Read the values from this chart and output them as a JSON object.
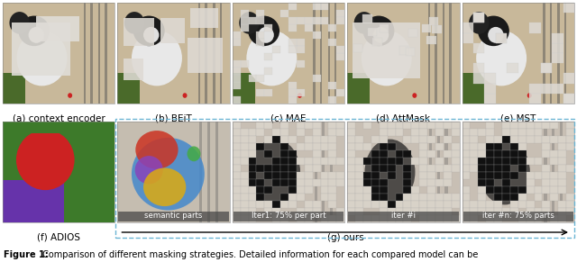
{
  "title_bold": "Figure 1:",
  "title_text": " Comparison of different masking strategies. Detailed information for each compared model can be",
  "row1_labels": [
    "(a) context encoder",
    "(b) BEiT",
    "(c) MAE",
    "(d) AttMask",
    "(e) MST"
  ],
  "row2_label_adios": "(f) ADIOS",
  "row2_label_ours": "(g) ours",
  "sublabels_row2": [
    "semantic parts",
    "Iter1: 75% per part",
    "iter #i",
    "iter #n: 75% parts"
  ],
  "background_color": "#ffffff",
  "dashed_box_color": "#6bb5d4",
  "caption_fontsize": 7.0,
  "label_fontsize": 7.5,
  "sublabel_fontsize": 6.2,
  "fig_width": 6.4,
  "fig_height": 3.11,
  "dpi": 100
}
